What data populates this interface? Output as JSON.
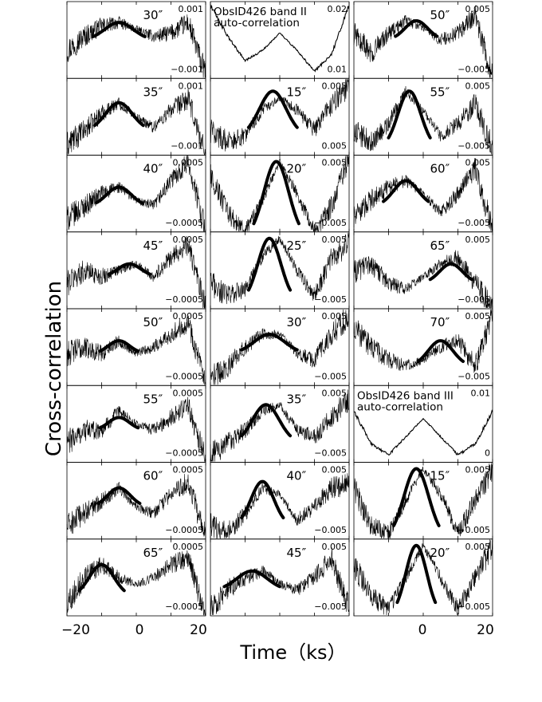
{
  "figure": {
    "ylabel": "Cross-correlation",
    "xlabel": "Time（ks）",
    "xticks": [
      -20,
      0,
      20
    ],
    "xtick_labels": [
      "−20",
      "0",
      "20",
      "0",
      "20"
    ]
  },
  "chart_data": [
    {
      "type": "line",
      "col": 0,
      "row": 0,
      "label": "30″",
      "ytick_labels": [
        "0.001",
        "−0.001"
      ],
      "xlim": [
        -20,
        20
      ],
      "ylim": [
        -0.0011,
        0.0011
      ],
      "x": [
        -20,
        -15,
        -10,
        -5,
        0,
        5,
        10,
        15,
        20
      ],
      "values": [
        -0.0003,
        0.0001,
        0.0004,
        0.0005,
        0.0003,
        0.0001,
        0.0002,
        0.0005,
        -0.001
      ],
      "fit": {
        "center": -5,
        "width": 7.5,
        "peak": 0.0005,
        "base": 0.0
      }
    },
    {
      "type": "line",
      "col": 0,
      "row": 1,
      "label": "35″",
      "ytick_labels": [
        "0.001",
        "−0.001"
      ],
      "xlim": [
        -20,
        20
      ],
      "ylim": [
        -0.0011,
        0.0011
      ],
      "x": [
        -20,
        -15,
        -10,
        -5,
        0,
        5,
        10,
        15,
        20
      ],
      "values": [
        -0.0008,
        -0.0004,
        0.0001,
        0.0004,
        0.0,
        -0.0003,
        0.0002,
        0.0005,
        -0.0011
      ],
      "fit": {
        "center": -5,
        "width": 7,
        "peak": 0.0004,
        "base": -0.0004
      }
    },
    {
      "type": "line",
      "col": 0,
      "row": 2,
      "label": "40″",
      "ytick_labels": [
        "0.0005",
        "−0.0005"
      ],
      "xlim": [
        -20,
        20
      ],
      "ylim": [
        -0.0006,
        0.0006
      ],
      "x": [
        -20,
        -15,
        -10,
        -5,
        0,
        5,
        10,
        15,
        20
      ],
      "values": [
        -0.0004,
        -0.0002,
        0.0,
        0.0001,
        -0.0001,
        -0.0002,
        0.0002,
        0.0005,
        -0.0006
      ],
      "fit": {
        "center": -5,
        "width": 6.5,
        "peak": 0.0001,
        "base": -0.0002
      }
    },
    {
      "type": "line",
      "col": 0,
      "row": 3,
      "label": "45″",
      "ytick_labels": [
        "0.0005",
        "−0.0005"
      ],
      "xlim": [
        -20,
        20
      ],
      "ylim": [
        -0.0006,
        0.0006
      ],
      "x": [
        -20,
        -15,
        -10,
        -5,
        0,
        5,
        10,
        15,
        20
      ],
      "values": [
        -0.0002,
        0.0,
        -0.0001,
        0.0,
        0.0001,
        -0.0001,
        0.0002,
        0.0004,
        -0.0006
      ],
      "fit": {
        "center": -2,
        "width": 6,
        "peak": 0.0001,
        "base": -0.0001
      }
    },
    {
      "type": "line",
      "col": 0,
      "row": 4,
      "label": "50″",
      "ytick_labels": [
        "0.0005",
        "−0.0005"
      ],
      "xlim": [
        -20,
        20
      ],
      "ylim": [
        -0.0006,
        0.0006
      ],
      "x": [
        -20,
        -15,
        -10,
        -5,
        0,
        5,
        10,
        15,
        20
      ],
      "values": [
        -0.0001,
        0.0,
        -0.0001,
        0.0001,
        -0.0001,
        0.0,
        0.0002,
        0.0004,
        -0.0006
      ],
      "fit": {
        "center": -5,
        "width": 5.5,
        "peak": 0.0001,
        "base": -0.0001
      }
    },
    {
      "type": "line",
      "col": 0,
      "row": 5,
      "label": "55″",
      "ytick_labels": [
        "0.0005",
        "−0.0005"
      ],
      "xlim": [
        -20,
        20
      ],
      "ylim": [
        -0.0006,
        0.0006
      ],
      "x": [
        -20,
        -15,
        -10,
        -5,
        0,
        5,
        10,
        15,
        20
      ],
      "values": [
        -0.0003,
        -0.0001,
        -0.0001,
        0.0002,
        0.0,
        -0.0001,
        0.0001,
        0.0003,
        -0.0006
      ],
      "fit": {
        "center": -5,
        "width": 5.5,
        "peak": 0.0001,
        "base": -0.0001
      }
    },
    {
      "type": "line",
      "col": 0,
      "row": 6,
      "label": "60″",
      "ytick_labels": [
        "0.0005",
        "−0.0005"
      ],
      "xlim": [
        -20,
        20
      ],
      "ylim": [
        -0.0006,
        0.0006
      ],
      "x": [
        -20,
        -15,
        -10,
        -5,
        0,
        5,
        10,
        15,
        20
      ],
      "values": [
        -0.0004,
        -0.0002,
        0.0,
        0.0002,
        -0.0001,
        -0.0002,
        0.0001,
        0.0003,
        -0.0006
      ],
      "fit": {
        "center": -5,
        "width": 6,
        "peak": 0.0002,
        "base": -0.0001
      }
    },
    {
      "type": "line",
      "col": 0,
      "row": 7,
      "label": "65″",
      "ytick_labels": [
        "0.0005",
        "−0.0005"
      ],
      "xlim": [
        -20,
        20
      ],
      "ylim": [
        -0.0006,
        0.0006
      ],
      "x": [
        -20,
        -15,
        -10,
        -5,
        0,
        5,
        10,
        15,
        20
      ],
      "values": [
        -0.0004,
        0.0,
        0.0002,
        0.0,
        -0.0001,
        0.0,
        0.0002,
        0.0003,
        -0.0006
      ],
      "fit": {
        "center": -10,
        "width": 6.5,
        "peak": 0.0002,
        "base": -0.0003
      }
    },
    {
      "type": "line",
      "col": 1,
      "row": 0,
      "label": "",
      "title_lines": [
        "ObsID426 band II",
        "auto-correlation"
      ],
      "ytick_labels": [
        "0.02",
        "0.01"
      ],
      "xlim": [
        -20,
        20
      ],
      "ylim": [
        0.007,
        0.029
      ],
      "x": [
        -20,
        -15,
        -10,
        -5,
        0,
        5,
        10,
        15,
        20
      ],
      "values": [
        0.028,
        0.019,
        0.012,
        0.015,
        0.02,
        0.015,
        0.009,
        0.014,
        0.028
      ],
      "fit": null
    },
    {
      "type": "line",
      "col": 1,
      "row": 1,
      "label": "15″",
      "ytick_labels": [
        "0.005",
        "0.005"
      ],
      "xlim": [
        -20,
        20
      ],
      "ylim": [
        -0.006,
        0.006
      ],
      "x": [
        -20,
        -15,
        -10,
        -5,
        0,
        5,
        10,
        15,
        20
      ],
      "values": [
        -0.002,
        -0.004,
        -0.003,
        0.001,
        0.003,
        0.001,
        -0.002,
        0.002,
        0.005
      ],
      "fit": {
        "center": -2,
        "width": 7,
        "peak": 0.004,
        "base": -0.003
      }
    },
    {
      "type": "line",
      "col": 1,
      "row": 2,
      "label": "20″",
      "ytick_labels": [
        "0.005",
        "−0.005"
      ],
      "xlim": [
        -20,
        20
      ],
      "ylim": [
        -0.006,
        0.006
      ],
      "x": [
        -20,
        -15,
        -10,
        -5,
        0,
        5,
        10,
        15,
        20
      ],
      "values": [
        0.003,
        -0.003,
        -0.006,
        -0.001,
        0.005,
        0.0,
        -0.006,
        -0.002,
        0.006
      ],
      "fit": {
        "center": -1,
        "width": 6.5,
        "peak": 0.005,
        "base": -0.007
      }
    },
    {
      "type": "line",
      "col": 1,
      "row": 3,
      "label": "25″",
      "ytick_labels": [
        "0.005",
        "−0.005"
      ],
      "xlim": [
        -20,
        20
      ],
      "ylim": [
        -0.006,
        0.006
      ],
      "x": [
        -20,
        -15,
        -10,
        -5,
        0,
        5,
        10,
        15,
        20
      ],
      "values": [
        -0.002,
        -0.004,
        -0.003,
        0.002,
        0.005,
        0.0,
        -0.004,
        0.002,
        0.004
      ],
      "fit": {
        "center": -3,
        "width": 6,
        "peak": 0.005,
        "base": -0.005
      }
    },
    {
      "type": "line",
      "col": 1,
      "row": 4,
      "label": "30″",
      "ytick_labels": [
        "0.005",
        "−0.005"
      ],
      "xlim": [
        -20,
        20
      ],
      "ylim": [
        -0.006,
        0.006
      ],
      "x": [
        -20,
        -15,
        -10,
        -5,
        0,
        5,
        10,
        15,
        20
      ],
      "values": [
        -0.005,
        -0.003,
        0.0,
        0.002,
        0.002,
        -0.001,
        -0.002,
        0.002,
        0.005
      ],
      "fit": {
        "center": -3,
        "width": 8,
        "peak": 0.002,
        "base": -0.001
      }
    },
    {
      "type": "line",
      "col": 1,
      "row": 5,
      "label": "35″",
      "ytick_labels": [
        "0.005",
        "−0.005"
      ],
      "xlim": [
        -20,
        20
      ],
      "ylim": [
        -0.006,
        0.006
      ],
      "x": [
        -20,
        -15,
        -10,
        -5,
        0,
        5,
        10,
        15,
        20
      ],
      "values": [
        -0.005,
        -0.003,
        -0.001,
        0.002,
        0.003,
        -0.001,
        -0.002,
        0.001,
        0.004
      ],
      "fit": {
        "center": -4,
        "width": 7,
        "peak": 0.003,
        "base": -0.003
      }
    },
    {
      "type": "line",
      "col": 1,
      "row": 6,
      "label": "40″",
      "ytick_labels": [
        "0.005",
        "−0.005"
      ],
      "xlim": [
        -20,
        20
      ],
      "ylim": [
        -0.006,
        0.006
      ],
      "x": [
        -20,
        -15,
        -10,
        -5,
        0,
        5,
        10,
        15,
        20
      ],
      "values": [
        -0.004,
        -0.005,
        -0.002,
        0.002,
        0.001,
        -0.003,
        -0.001,
        0.002,
        0.003
      ],
      "fit": {
        "center": -5,
        "width": 6,
        "peak": 0.003,
        "base": -0.004
      }
    },
    {
      "type": "line",
      "col": 1,
      "row": 7,
      "label": "45″",
      "ytick_labels": [
        "0.005",
        "−0.005"
      ],
      "xlim": [
        -20,
        20
      ],
      "ylim": [
        -0.006,
        0.006
      ],
      "x": [
        -20,
        -15,
        -10,
        -5,
        0,
        5,
        10,
        15,
        20
      ],
      "values": [
        -0.005,
        -0.002,
        0.0,
        0.001,
        -0.001,
        -0.002,
        0.0,
        0.003,
        -0.005
      ],
      "fit": {
        "center": -8,
        "width": 8,
        "peak": 0.001,
        "base": -0.002
      }
    },
    {
      "type": "line",
      "col": 2,
      "row": 0,
      "label": "50″",
      "ytick_labels": [
        "0.005",
        "−0.005"
      ],
      "xlim": [
        -20,
        20
      ],
      "ylim": [
        -0.006,
        0.006
      ],
      "x": [
        -20,
        -15,
        -10,
        -5,
        0,
        5,
        10,
        15,
        20
      ],
      "values": [
        0.001,
        -0.002,
        0.001,
        0.003,
        0.002,
        0.0,
        0.001,
        0.004,
        -0.006
      ],
      "fit": {
        "center": -2,
        "width": 6,
        "peak": 0.003,
        "base": 0.0
      }
    },
    {
      "type": "line",
      "col": 2,
      "row": 1,
      "label": "55″",
      "ytick_labels": [
        "0.005",
        "−0.005"
      ],
      "xlim": [
        -20,
        20
      ],
      "ylim": [
        -0.006,
        0.006
      ],
      "x": [
        -20,
        -15,
        -10,
        -5,
        0,
        5,
        10,
        15,
        20
      ],
      "values": [
        -0.002,
        -0.004,
        -0.001,
        0.004,
        0.001,
        -0.003,
        -0.001,
        0.002,
        -0.005
      ],
      "fit": {
        "center": -4,
        "width": 6,
        "peak": 0.004,
        "base": -0.005
      }
    },
    {
      "type": "line",
      "col": 2,
      "row": 2,
      "label": "60″",
      "ytick_labels": [
        "0.005",
        "−0.005"
      ],
      "xlim": [
        -20,
        20
      ],
      "ylim": [
        -0.006,
        0.006
      ],
      "x": [
        -20,
        -15,
        -10,
        -5,
        0,
        5,
        10,
        15,
        20
      ],
      "values": [
        -0.004,
        -0.001,
        0.001,
        0.002,
        0.0,
        -0.003,
        0.0,
        0.004,
        -0.006
      ],
      "fit": {
        "center": -5,
        "width": 6.5,
        "peak": 0.002,
        "base": -0.002
      }
    },
    {
      "type": "line",
      "col": 2,
      "row": 3,
      "label": "65″",
      "ytick_labels": [
        "0.005",
        "−0.005"
      ],
      "xlim": [
        -20,
        20
      ],
      "ylim": [
        -0.006,
        0.006
      ],
      "x": [
        -20,
        -15,
        -10,
        -5,
        0,
        5,
        10,
        15,
        20
      ],
      "values": [
        0.0,
        0.001,
        -0.002,
        -0.003,
        -0.001,
        0.001,
        0.002,
        -0.002,
        -0.006
      ],
      "fit": {
        "center": 8,
        "width": 6,
        "peak": 0.001,
        "base": -0.002
      }
    },
    {
      "type": "line",
      "col": 2,
      "row": 4,
      "label": "70″",
      "ytick_labels": [
        "0.005",
        "−0.005"
      ],
      "xlim": [
        -20,
        20
      ],
      "ylim": [
        -0.006,
        0.006
      ],
      "x": [
        -20,
        -15,
        -10,
        -5,
        0,
        5,
        10,
        15,
        20
      ],
      "values": [
        0.003,
        0.0,
        -0.002,
        -0.003,
        -0.002,
        0.0,
        0.001,
        -0.003,
        0.005
      ],
      "fit": {
        "center": 5,
        "width": 6.5,
        "peak": 0.001,
        "base": -0.003
      }
    },
    {
      "type": "line",
      "col": 2,
      "row": 5,
      "label": "",
      "title_lines": [
        "ObsID426 band III",
        "auto-correlation"
      ],
      "ytick_labels": [
        "0.01",
        "0"
      ],
      "xlim": [
        -20,
        20
      ],
      "ylim": [
        -0.004,
        0.017
      ],
      "x": [
        -20,
        -15,
        -10,
        -5,
        0,
        5,
        10,
        15,
        20
      ],
      "values": [
        0.01,
        0.001,
        -0.002,
        0.003,
        0.008,
        0.003,
        -0.002,
        0.001,
        0.01
      ],
      "fit": null
    },
    {
      "type": "line",
      "col": 2,
      "row": 6,
      "label": "15″",
      "ytick_labels": [
        "0.005",
        "−0.005"
      ],
      "xlim": [
        -20,
        20
      ],
      "ylim": [
        -0.006,
        0.006
      ],
      "x": [
        -20,
        -15,
        -10,
        -5,
        0,
        5,
        10,
        15,
        20
      ],
      "values": [
        0.002,
        -0.004,
        -0.005,
        0.0,
        0.005,
        0.001,
        -0.005,
        0.0,
        0.005
      ],
      "fit": {
        "center": -2,
        "width": 6.5,
        "peak": 0.005,
        "base": -0.006
      }
    },
    {
      "type": "line",
      "col": 2,
      "row": 7,
      "label": "20″",
      "ytick_labels": [
        "0.005",
        "−0.005"
      ],
      "xlim": [
        -20,
        20
      ],
      "ylim": [
        -0.006,
        0.006
      ],
      "x": [
        -20,
        -15,
        -10,
        -5,
        0,
        5,
        10,
        15,
        20
      ],
      "values": [
        0.002,
        -0.003,
        -0.005,
        0.0,
        0.005,
        0.0,
        -0.005,
        0.0,
        0.005
      ],
      "fit": {
        "center": -2,
        "width": 5.5,
        "peak": 0.005,
        "base": -0.006
      }
    }
  ]
}
